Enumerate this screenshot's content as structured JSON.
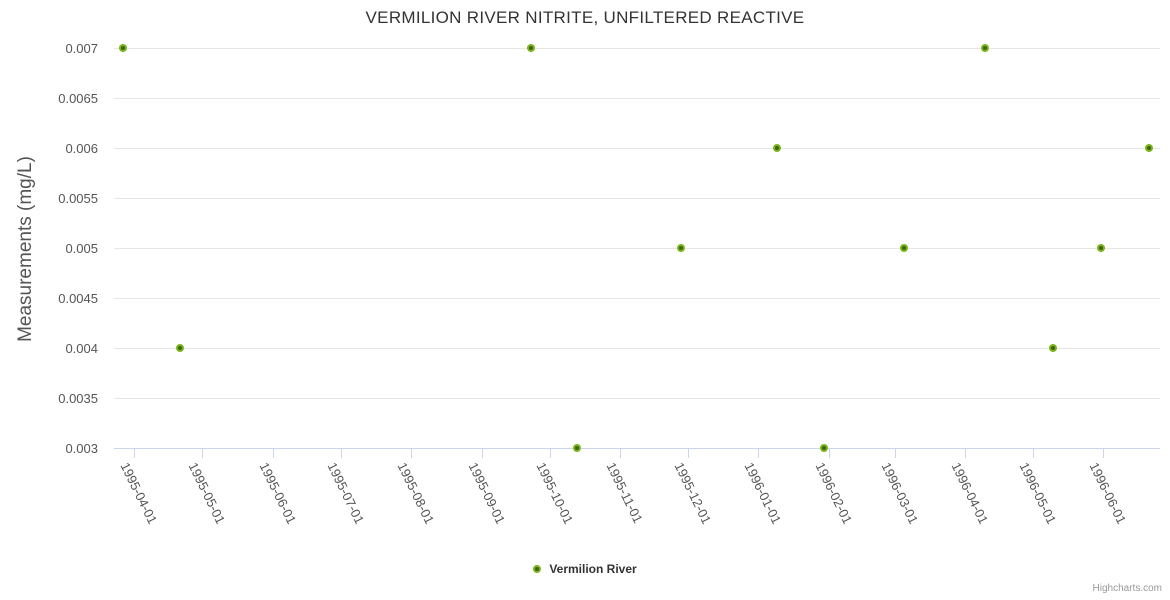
{
  "chart": {
    "title": "VERMILION RIVER NITRITE, UNFILTERED REACTIVE",
    "credits": "Highcharts.com"
  },
  "legend": {
    "items": [
      {
        "label": "Vermilion River"
      }
    ]
  },
  "chart_data": {
    "type": "scatter",
    "title": "VERMILION RIVER NITRITE, UNFILTERED REACTIVE",
    "xlabel": "",
    "ylabel": "Measurements (mg/L)",
    "grid": true,
    "legend_position": "bottom-center",
    "x_axis": {
      "type": "datetime",
      "min": "1995-03-23",
      "max": "1996-06-26",
      "tick_labels": [
        "1995-04-01",
        "1995-05-01",
        "1995-06-01",
        "1995-07-01",
        "1995-08-01",
        "1995-09-01",
        "1995-10-01",
        "1995-11-01",
        "1995-12-01",
        "1996-01-01",
        "1996-02-01",
        "1996-03-01",
        "1996-04-01",
        "1996-05-01",
        "1996-06-01"
      ]
    },
    "y_axis": {
      "min": 0.003,
      "max": 0.007,
      "tick_interval": 0.0005,
      "tick_labels": [
        "0.003",
        "0.0035",
        "0.004",
        "0.0045",
        "0.005",
        "0.0055",
        "0.006",
        "0.0065",
        "0.007"
      ]
    },
    "series": [
      {
        "name": "Vermilion River",
        "points": [
          {
            "x": "1995-03-27",
            "y": 0.007
          },
          {
            "x": "1995-04-21",
            "y": 0.004
          },
          {
            "x": "1995-09-23",
            "y": 0.007
          },
          {
            "x": "1995-10-13",
            "y": 0.003
          },
          {
            "x": "1995-11-28",
            "y": 0.005
          },
          {
            "x": "1996-01-09",
            "y": 0.006
          },
          {
            "x": "1996-01-30",
            "y": 0.003
          },
          {
            "x": "1996-03-05",
            "y": 0.005
          },
          {
            "x": "1996-04-10",
            "y": 0.007
          },
          {
            "x": "1996-05-10",
            "y": 0.004
          },
          {
            "x": "1996-05-31",
            "y": 0.005
          },
          {
            "x": "1996-06-21",
            "y": 0.006
          }
        ]
      }
    ]
  },
  "colors": {
    "marker_fill": "#3e660b",
    "marker_stroke": "#7db41a",
    "grid_line": "#e6e6e6",
    "axis_line": "#ccd6eb",
    "title_text": "#333333",
    "axis_label_text": "#555555",
    "legend_text": "#333333",
    "credits_text": "#999999"
  }
}
